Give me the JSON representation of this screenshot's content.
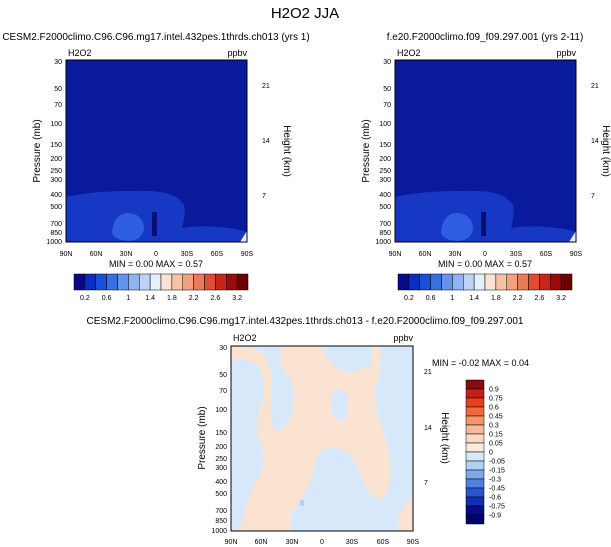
{
  "chart_data": {
    "title": "H2O2 JJA",
    "panels": [
      {
        "type": "heatmap",
        "title": "CESM2.F2000climo.C96.C96.mg17.intel.432pes.1thrds.ch013 (yrs 1)",
        "variable": "H2O2",
        "units": "ppbv",
        "ylabel": "Pressure (mb)",
        "y2label": "Height (km)",
        "xticks": [
          "90N",
          "60N",
          "30N",
          "0",
          "30S",
          "60S",
          "90S"
        ],
        "yticks": [
          "30",
          "50",
          "70",
          "100",
          "150",
          "200",
          "250",
          "300",
          "400",
          "500",
          "700",
          "850",
          "1000"
        ],
        "y2ticks": [
          "21",
          "14",
          "7"
        ],
        "stats": "MIN =  0.00  MAX =  0.57",
        "colorbar": "levels"
      },
      {
        "type": "heatmap",
        "title": "f.e20.F2000climo.f09_f09.297.001 (yrs 2-11)",
        "variable": "H2O2",
        "units": "ppbv",
        "ylabel": "Pressure (mb)",
        "y2label": "Height (km)",
        "xticks": [
          "90N",
          "60N",
          "30N",
          "0",
          "30S",
          "60S",
          "90S"
        ],
        "yticks": [
          "30",
          "50",
          "70",
          "100",
          "150",
          "200",
          "250",
          "300",
          "400",
          "500",
          "700",
          "850",
          "1000"
        ],
        "y2ticks": [
          "21",
          "14",
          "7"
        ],
        "stats": "MIN =  0.00  MAX =  0.57",
        "colorbar": "levels"
      },
      {
        "type": "heatmap",
        "title": "CESM2.F2000climo.C96.C96.mg17.intel.432pes.1thrds.ch013 - f.e20.F2000climo.f09_f09.297.001",
        "variable": "H2O2",
        "units": "ppbv",
        "ylabel": "Pressure (mb)",
        "y2label": "Height (km)",
        "xticks": [
          "90N",
          "60N",
          "30N",
          "0",
          "30S",
          "60S",
          "90S"
        ],
        "yticks": [
          "30",
          "50",
          "70",
          "100",
          "150",
          "200",
          "250",
          "300",
          "400",
          "500",
          "700",
          "850",
          "1000"
        ],
        "y2ticks": [
          "21",
          "14",
          "7"
        ],
        "stats": "MIN = -0.02  MAX =  0.04",
        "colorbar": "diff_levels"
      }
    ],
    "colorbar_levels": {
      "labels": [
        "0.2",
        "0.6",
        "1",
        "1.4",
        "1.8",
        "2.2",
        "2.6",
        "3.2"
      ],
      "colors": [
        "#08088a",
        "#0b2ec2",
        "#1b4fd8",
        "#3770e0",
        "#6394ea",
        "#90b4f0",
        "#bed4f6",
        "#e6f0fb",
        "#fbe2d3",
        "#f7c3a6",
        "#f3a07e",
        "#ec7a59",
        "#df4b33",
        "#c9241a",
        "#9c0a0a",
        "#6e0000"
      ]
    },
    "colorbar_diff_levels": {
      "labels": [
        "0.9",
        "0.75",
        "0.6",
        "0.45",
        "0.3",
        "0.15",
        "0.05",
        "0",
        "-0.05",
        "-0.15",
        "-0.3",
        "-0.45",
        "-0.6",
        "-0.75",
        "-0.9"
      ],
      "colors": [
        "#8b0a0a",
        "#c81e14",
        "#e4401f",
        "#f2683f",
        "#f79466",
        "#f9b898",
        "#fbd9c2",
        "#fde9dc",
        "#d6e8fb",
        "#b0cff5",
        "#7ea8ec",
        "#4f7fe2",
        "#2856cf",
        "#0f2fb4",
        "#080a8c",
        "#030467"
      ]
    }
  }
}
